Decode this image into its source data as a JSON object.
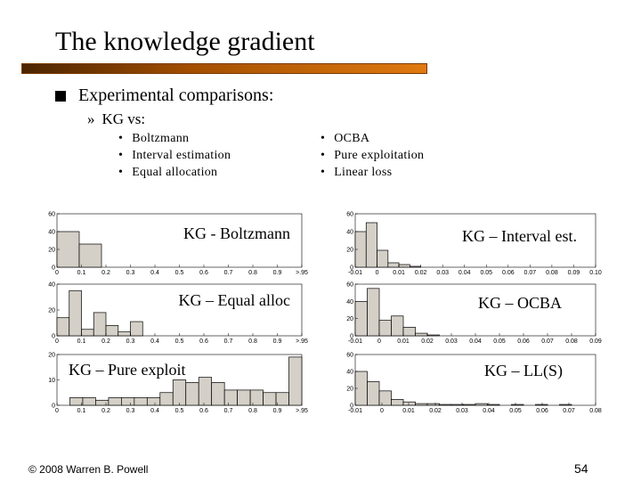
{
  "slide": {
    "title": "The knowledge gradient",
    "bullet": "Experimental comparisons:",
    "sub": "KG vs:",
    "sub_marker": "»",
    "list_left": [
      "Boltzmann",
      "Interval estimation",
      "Equal allocation"
    ],
    "list_right": [
      "OCBA",
      "Pure exploitation",
      "Linear loss"
    ],
    "footer": "© 2008 Warren B. Powell",
    "page_number": "54"
  },
  "colors": {
    "bar_fill": "#d4d0c8",
    "bar_stroke": "#000000",
    "rule_start": "#4a2500",
    "rule_end": "#e07a10"
  },
  "chart_data": [
    {
      "type": "bar",
      "label": "KG - Boltzmann",
      "ylim": [
        0,
        60
      ],
      "yticks": [
        "0",
        "20",
        "40",
        "60"
      ],
      "xticks": [
        "0",
        "0.1",
        "0.2",
        "0.3",
        "0.4",
        "0.5",
        "0.6",
        "0.7",
        "0.8",
        "0.9",
        ">.95"
      ],
      "values": [
        40,
        26,
        0,
        0,
        0,
        0,
        0,
        0,
        0,
        0,
        0
      ]
    },
    {
      "type": "bar",
      "label": "KG – Equal alloc",
      "ylim": [
        0,
        40
      ],
      "yticks": [
        "0",
        "20",
        "40"
      ],
      "xticks": [
        "0",
        "0.1",
        "0.2",
        "0.3",
        "0.4",
        "0.5",
        "0.6",
        "0.7",
        "0.8",
        "0.9",
        ">.95"
      ],
      "values": [
        14,
        35,
        5,
        18,
        8,
        3,
        11,
        0,
        0,
        0,
        0,
        0,
        0,
        0,
        0,
        0,
        0,
        0,
        0,
        0
      ]
    },
    {
      "type": "bar",
      "label": "KG – Pure exploit",
      "ylim": [
        0,
        20
      ],
      "yticks": [
        "0",
        "10",
        "20"
      ],
      "xticks": [
        "0",
        "0.1",
        "0.2",
        "0.3",
        "0.4",
        "0.5",
        "0.6",
        "0.7",
        "0.8",
        "0.9",
        ">.95"
      ],
      "values": [
        0,
        3,
        3,
        2,
        3,
        3,
        3,
        3,
        5,
        10,
        9,
        11,
        9,
        6,
        6,
        6,
        5,
        5,
        19
      ]
    },
    {
      "type": "bar",
      "label": "KG – Interval est.",
      "ylim": [
        0,
        60
      ],
      "yticks": [
        "0",
        "20",
        "40",
        "60"
      ],
      "xticks": [
        "-0.01",
        "0",
        "0.01",
        "0.02",
        "0.03",
        "0.04",
        "0.05",
        "0.06",
        "0.07",
        "0.08",
        "0.09",
        "0.10"
      ],
      "values": [
        40,
        50,
        19,
        5,
        3,
        1,
        0,
        0,
        0,
        0,
        0,
        0,
        0,
        0,
        0,
        0,
        0,
        0,
        0,
        0,
        0,
        0
      ]
    },
    {
      "type": "bar",
      "label": "KG – OCBA",
      "ylim": [
        0,
        60
      ],
      "yticks": [
        "0",
        "20",
        "40",
        "60"
      ],
      "xticks": [
        "-0.01",
        "0",
        "0.01",
        "0.02",
        "0.03",
        "0.04",
        "0.05",
        "0.06",
        "0.07",
        "0.08",
        "0.09"
      ],
      "values": [
        40,
        55,
        18,
        23,
        10,
        3,
        1,
        0,
        0,
        0,
        0,
        0,
        0,
        0,
        0,
        0,
        0,
        0,
        0,
        0
      ]
    },
    {
      "type": "bar",
      "label": "KG – LL(S)",
      "ylim": [
        0,
        60
      ],
      "yticks": [
        "0",
        "20",
        "40",
        "60"
      ],
      "xticks": [
        "-0.01",
        "0",
        "0.01",
        "0.02",
        "0.03",
        "0.04",
        "0.05",
        "0.06",
        "0.07",
        "0.08"
      ],
      "values": [
        40,
        28,
        17,
        7,
        4,
        2,
        2,
        1,
        1,
        1,
        2,
        1,
        0,
        1,
        0,
        1,
        0,
        1,
        0,
        0
      ]
    }
  ]
}
